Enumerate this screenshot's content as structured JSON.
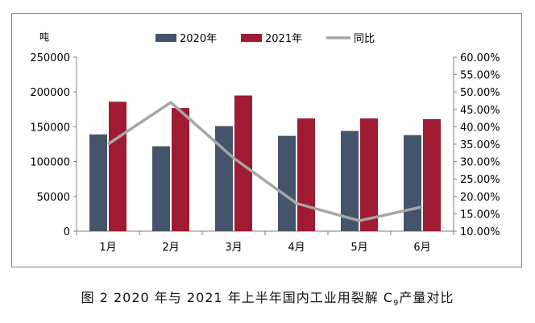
{
  "chart_data": {
    "type": "bar",
    "categories": [
      "1月",
      "2月",
      "3月",
      "4月",
      "5月",
      "6月"
    ],
    "series": [
      {
        "name": "2020年",
        "values": [
          139000,
          122000,
          151000,
          137000,
          144000,
          138000
        ],
        "color": "#44546a"
      },
      {
        "name": "2021年",
        "values": [
          186000,
          177000,
          195000,
          162000,
          162000,
          161000
        ],
        "color": "#9e1b32"
      }
    ],
    "line_series": {
      "name": "同比",
      "values": [
        0.35,
        0.47,
        0.31,
        0.18,
        0.13,
        0.17
      ],
      "color": "#a6a6a6",
      "axis": "right"
    },
    "ylabel": "吨",
    "ylim": [
      0,
      250000
    ],
    "y_ticks": [
      0,
      50000,
      100000,
      150000,
      200000,
      250000
    ],
    "y2lim": [
      0.1,
      0.6
    ],
    "y2_ticks": [
      "10.00%",
      "15.00%",
      "20.00%",
      "25.00%",
      "30.00%",
      "35.00%",
      "40.00%",
      "45.00%",
      "50.00%",
      "55.00%",
      "60.00%"
    ],
    "legend_position": "top-center",
    "grid": false
  },
  "caption": {
    "prefix": "图 2  2020 年与 2021 年上半年国内工业用裂解 C",
    "sub": "9",
    "suffix": "产量对比"
  }
}
